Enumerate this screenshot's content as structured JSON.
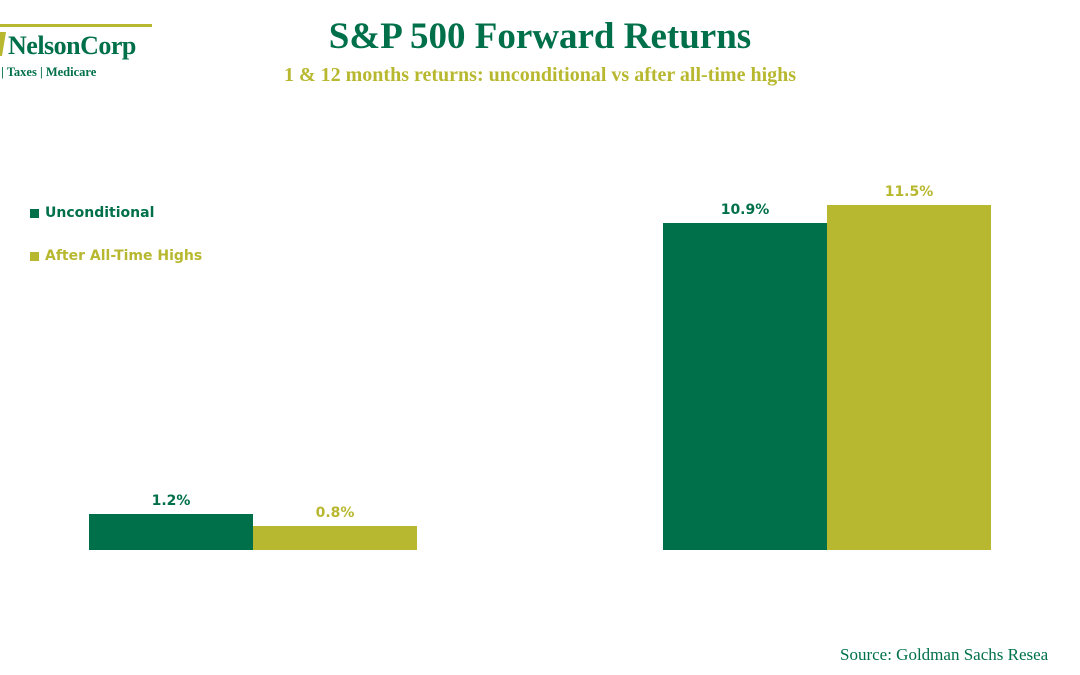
{
  "brand": {
    "name": "NelsonCorp",
    "tagline": "ments | Taxes | Medicare",
    "color_primary": "#00704a",
    "color_secondary": "#b8b830"
  },
  "header": {
    "title": "S&P 500 Forward Returns",
    "subtitle": "1 & 12 months returns: unconditional vs after all-time highs"
  },
  "source": "Source: Goldman Sachs Resea",
  "chart_data": {
    "type": "bar",
    "categories": [
      "",
      ""
    ],
    "series": [
      {
        "name": "Unconditional",
        "values": [
          1.2,
          10.9
        ],
        "color": "#00704a"
      },
      {
        "name": "After All-Time Highs",
        "values": [
          0.8,
          11.5
        ],
        "color": "#b8b830"
      }
    ],
    "data_labels": [
      [
        "1.2%",
        "10.9%"
      ],
      [
        "0.8%",
        "11.5%"
      ]
    ],
    "title": "S&P 500 Forward Returns",
    "subtitle": "1 & 12 months returns: unconditional vs after all-time highs",
    "xlabel": "",
    "ylabel": "",
    "ylim": [
      0,
      12
    ],
    "grid": false,
    "legend_position": "top-left"
  }
}
